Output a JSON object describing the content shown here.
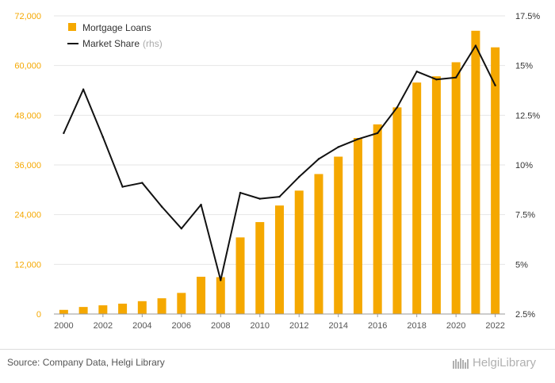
{
  "chart_data": {
    "type": "bar",
    "categories": [
      "2000",
      "2001",
      "2002",
      "2003",
      "2004",
      "2005",
      "2006",
      "2007",
      "2008",
      "2009",
      "2010",
      "2011",
      "2012",
      "2013",
      "2014",
      "2015",
      "2016",
      "2017",
      "2018",
      "2019",
      "2020",
      "2021",
      "2022"
    ],
    "series": [
      {
        "name": "Mortgage Loans",
        "type": "bar",
        "axis": "left",
        "color": "#f5a800",
        "values": [
          1000,
          1700,
          2100,
          2500,
          3100,
          3800,
          5100,
          9000,
          8900,
          18500,
          22200,
          26200,
          29800,
          33800,
          38000,
          42500,
          45800,
          49900,
          55900,
          57400,
          60800,
          68400,
          64400
        ]
      },
      {
        "name": "Market Share",
        "name_suffix": "(rhs)",
        "type": "line",
        "axis": "right",
        "color": "#111111",
        "values": [
          11.6,
          13.8,
          11.4,
          8.9,
          9.1,
          7.9,
          6.8,
          8.0,
          4.2,
          8.6,
          8.3,
          8.4,
          9.4,
          10.3,
          10.9,
          11.3,
          11.6,
          12.9,
          14.7,
          14.3,
          14.4,
          16.0,
          14.0
        ]
      }
    ],
    "y_left": {
      "ylim": [
        0,
        72000
      ],
      "ticks": [
        0,
        12000,
        24000,
        36000,
        48000,
        60000,
        72000
      ],
      "tick_labels": [
        "0",
        "12,000",
        "24,000",
        "36,000",
        "48,000",
        "60,000",
        "72,000"
      ]
    },
    "y_right": {
      "ylim": [
        2.5,
        17.5
      ],
      "ticks": [
        2.5,
        5,
        7.5,
        10,
        12.5,
        15,
        17.5
      ],
      "tick_labels": [
        "2.5%",
        "5%",
        "7.5%",
        "10%",
        "12.5%",
        "15%",
        "17.5%"
      ]
    },
    "x_tick_labels": [
      "2000",
      "2002",
      "2004",
      "2006",
      "2008",
      "2010",
      "2012",
      "2014",
      "2016",
      "2018",
      "2020",
      "2022"
    ],
    "grid": true,
    "legend": "top-left",
    "title": "",
    "xlabel": "",
    "ylabel": ""
  },
  "footer": {
    "source": "Source: Company Data, Helgi Library",
    "brand": "HelgiLibrary"
  }
}
